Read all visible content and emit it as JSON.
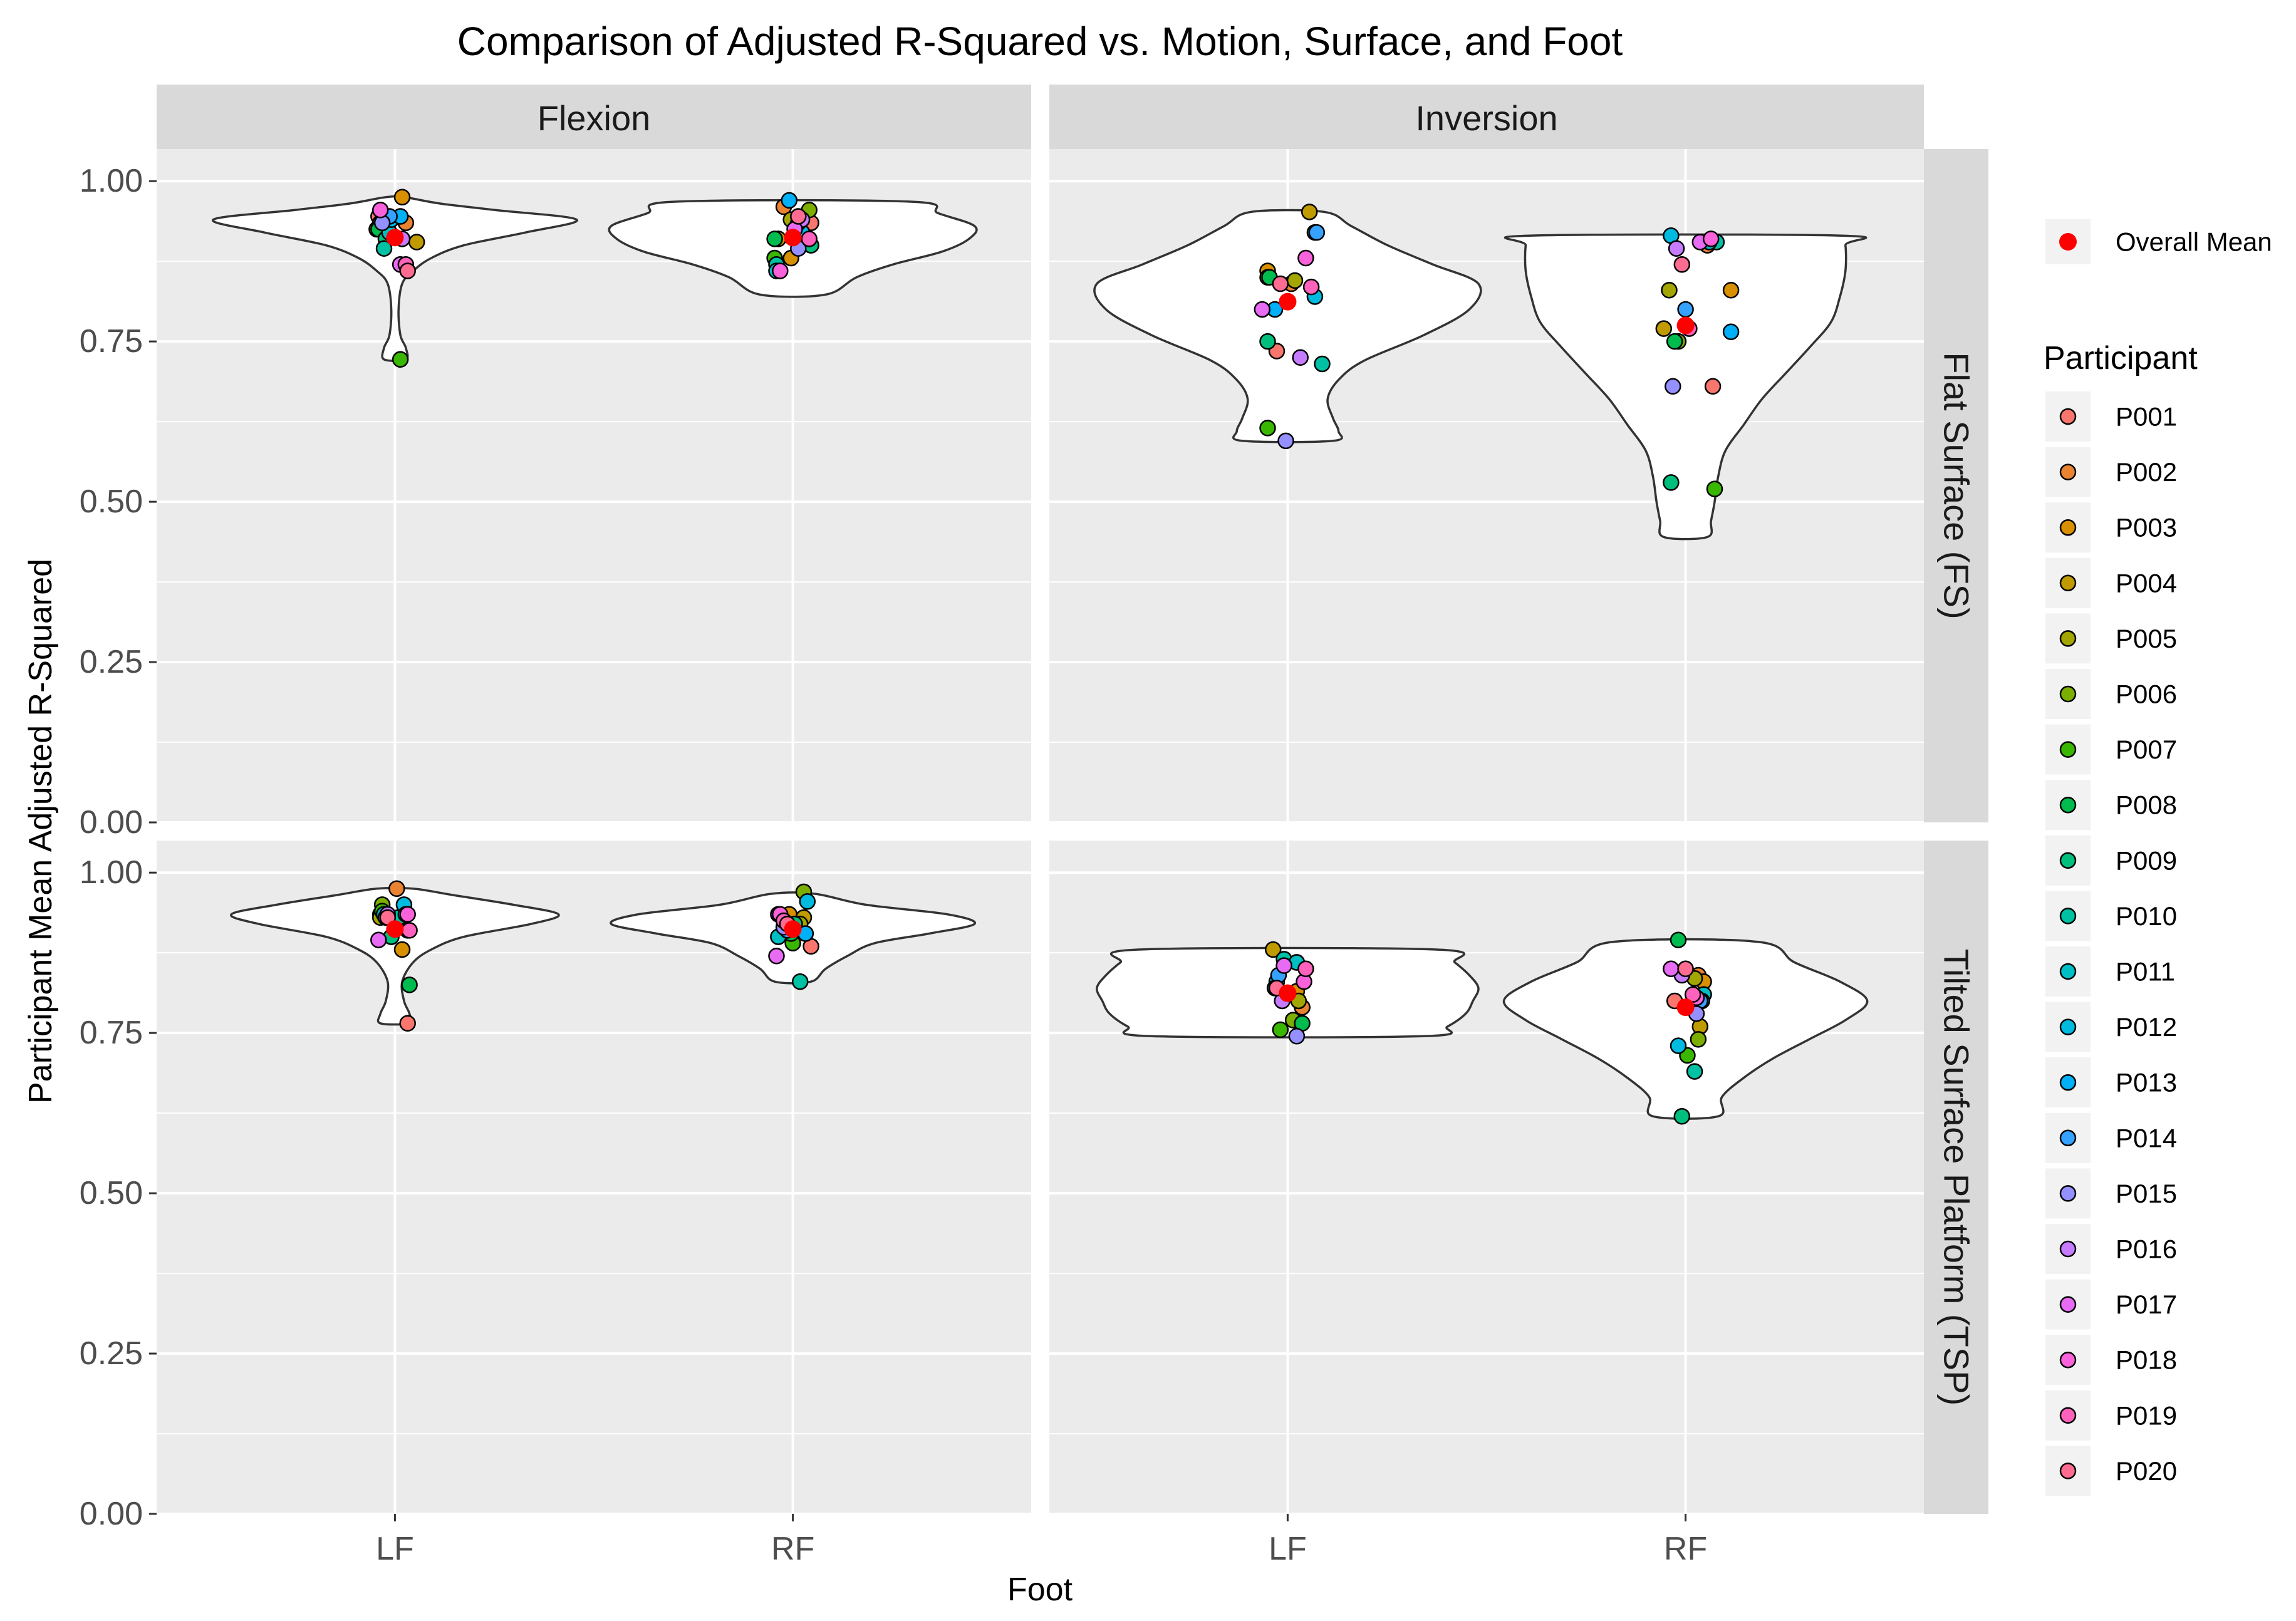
{
  "chart_data": {
    "type": "violin",
    "title": "Comparison of Adjusted R-Squared vs. Motion, Surface, and Foot",
    "xlabel": "Foot",
    "ylabel": "Participant Mean Adjusted R-Squared",
    "ylim": [
      0,
      1.05
    ],
    "yticks": [
      0.0,
      0.25,
      0.5,
      0.75,
      1.0
    ],
    "ytick_labels": [
      "0.00",
      "0.25",
      "0.50",
      "0.75",
      "1.00"
    ],
    "categories": [
      "LF",
      "RF"
    ],
    "facet_cols": [
      "Flexion",
      "Inversion"
    ],
    "facet_rows": [
      "Flat Surface (FS)",
      "Tilted Surface Platform (TSP)"
    ],
    "legend": {
      "mean_label": "Overall Mean",
      "mean_color": "#ff0000",
      "title": "Participant",
      "participants": [
        "P001",
        "P002",
        "P003",
        "P004",
        "P005",
        "P006",
        "P007",
        "P008",
        "P009",
        "P010",
        "P011",
        "P012",
        "P013",
        "P014",
        "P015",
        "P016",
        "P017",
        "P018",
        "P019",
        "P020"
      ],
      "colors": [
        "#F8766D",
        "#EA8331",
        "#D89000",
        "#C09B00",
        "#A3A500",
        "#7CAE00",
        "#39B600",
        "#00BB4E",
        "#00BF7D",
        "#00C1A3",
        "#00BFC4",
        "#00BAE0",
        "#00B0F6",
        "#35A2FF",
        "#9590FF",
        "#C77CFF",
        "#E76BF3",
        "#FA62DB",
        "#FF62BC",
        "#FF6C91"
      ]
    },
    "panels": [
      {
        "motion": "Flexion",
        "surface": "Flat Surface (FS)",
        "groups": [
          {
            "foot": "LF",
            "mean": 0.912,
            "min": 0.722,
            "max": 0.975,
            "violin": [
              [
                0.722,
                0.06
              ],
              [
                0.74,
                0.06
              ],
              [
                0.76,
                0.03
              ],
              [
                0.8,
                0.02
              ],
              [
                0.84,
                0.04
              ],
              [
                0.86,
                0.1
              ],
              [
                0.88,
                0.2
              ],
              [
                0.9,
                0.38
              ],
              [
                0.92,
                0.72
              ],
              [
                0.94,
                1.0
              ],
              [
                0.955,
                0.55
              ],
              [
                0.965,
                0.25
              ],
              [
                0.975,
                0.05
              ]
            ],
            "values": [
              0.945,
              0.935,
              0.975,
              0.905,
              0.925,
              0.935,
              0.722,
              0.925,
              0.91,
              0.895,
              0.92,
              0.94,
              0.945,
              0.945,
              0.935,
              0.91,
              0.87,
              0.955,
              0.87,
              0.86
            ],
            "jitter": [
              -0.09,
              0.06,
              0.04,
              0.12,
              -0.1,
              -0.08,
              0.03,
              -0.09,
              -0.05,
              -0.06,
              -0.03,
              -0.02,
              0.03,
              -0.03,
              -0.07,
              0.04,
              0.03,
              -0.08,
              0.06,
              0.07
            ]
          },
          {
            "foot": "RF",
            "mean": 0.912,
            "min": 0.823,
            "max": 0.968,
            "violin": [
              [
                0.823,
                0.18
              ],
              [
                0.85,
                0.35
              ],
              [
                0.87,
                0.55
              ],
              [
                0.89,
                0.82
              ],
              [
                0.91,
                0.97
              ],
              [
                0.93,
                1.0
              ],
              [
                0.95,
                0.8
              ],
              [
                0.968,
                0.65
              ]
            ],
            "values": [
              0.935,
              0.96,
              0.88,
              0.91,
              0.94,
              0.955,
              0.88,
              0.91,
              0.9,
              0.87,
              0.86,
              0.92,
              0.97,
              0.935,
              0.895,
              0.94,
              0.925,
              0.86,
              0.91,
              0.945
            ],
            "jitter": [
              0.1,
              -0.05,
              -0.01,
              -0.08,
              -0.01,
              0.09,
              -0.1,
              -0.1,
              0.1,
              -0.09,
              -0.09,
              0.05,
              -0.02,
              0.03,
              0.03,
              0.05,
              0.01,
              -0.07,
              0.09,
              0.03
            ]
          }
        ]
      },
      {
        "motion": "Inversion",
        "surface": "Flat Surface (FS)",
        "groups": [
          {
            "foot": "LF",
            "mean": 0.812,
            "min": 0.595,
            "max": 0.952,
            "violin": [
              [
                0.595,
                0.25
              ],
              [
                0.61,
                0.28
              ],
              [
                0.63,
                0.25
              ],
              [
                0.66,
                0.22
              ],
              [
                0.69,
                0.28
              ],
              [
                0.72,
                0.42
              ],
              [
                0.76,
                0.75
              ],
              [
                0.8,
                1.0
              ],
              [
                0.84,
                1.05
              ],
              [
                0.87,
                0.8
              ],
              [
                0.9,
                0.55
              ],
              [
                0.93,
                0.35
              ],
              [
                0.952,
                0.2
              ]
            ],
            "values": [
              0.735,
              0.84,
              0.86,
              0.952,
              0.845,
              0.85,
              0.615,
              0.85,
              0.75,
              0.715,
              0.92,
              0.82,
              0.8,
              0.92,
              0.595,
              0.725,
              0.8,
              0.88,
              0.835,
              0.84
            ],
            "jitter": [
              -0.06,
              0.02,
              -0.11,
              0.12,
              0.04,
              -0.11,
              -0.11,
              -0.1,
              -0.11,
              0.19,
              0.15,
              0.15,
              -0.07,
              0.16,
              -0.01,
              0.07,
              -0.14,
              0.1,
              0.13,
              -0.04
            ]
          },
          {
            "foot": "RF",
            "mean": 0.775,
            "min": 0.445,
            "max": 0.915,
            "violin": [
              [
                0.445,
                0.12
              ],
              [
                0.47,
                0.14
              ],
              [
                0.5,
                0.16
              ],
              [
                0.54,
                0.18
              ],
              [
                0.58,
                0.22
              ],
              [
                0.62,
                0.32
              ],
              [
                0.66,
                0.42
              ],
              [
                0.7,
                0.55
              ],
              [
                0.74,
                0.68
              ],
              [
                0.78,
                0.8
              ],
              [
                0.82,
                0.85
              ],
              [
                0.86,
                0.88
              ],
              [
                0.9,
                0.88
              ],
              [
                0.915,
                0.86
              ]
            ],
            "values": [
              0.68,
              0.9,
              0.83,
              0.77,
              0.83,
              0.75,
              0.52,
              0.75,
              0.53,
              0.905,
              0.905,
              0.915,
              0.765,
              0.8,
              0.68,
              0.895,
              0.905,
              0.91,
              0.77,
              0.87
            ],
            "jitter": [
              0.15,
              0.12,
              0.25,
              -0.12,
              -0.09,
              -0.04,
              0.16,
              -0.06,
              -0.08,
              0.17,
              0.13,
              -0.08,
              0.25,
              0.0,
              -0.07,
              -0.05,
              0.08,
              0.14,
              0.02,
              -0.02
            ]
          }
        ]
      },
      {
        "motion": "Flexion",
        "surface": "Tilted Surface Platform (TSP)",
        "groups": [
          {
            "foot": "LF",
            "mean": 0.912,
            "min": 0.765,
            "max": 0.975,
            "violin": [
              [
                0.765,
                0.08
              ],
              [
                0.78,
                0.08
              ],
              [
                0.8,
                0.05
              ],
              [
                0.83,
                0.04
              ],
              [
                0.86,
                0.1
              ],
              [
                0.88,
                0.2
              ],
              [
                0.9,
                0.38
              ],
              [
                0.92,
                0.75
              ],
              [
                0.935,
                0.9
              ],
              [
                0.95,
                0.65
              ],
              [
                0.965,
                0.32
              ],
              [
                0.975,
                0.1
              ]
            ],
            "values": [
              0.765,
              0.975,
              0.88,
              0.935,
              0.93,
              0.95,
              0.94,
              0.825,
              0.9,
              0.93,
              0.935,
              0.95,
              0.935,
              0.91,
              0.93,
              0.935,
              0.895,
              0.935,
              0.91,
              0.93
            ],
            "jitter": [
              0.07,
              0.01,
              0.04,
              -0.08,
              -0.08,
              -0.07,
              -0.07,
              0.08,
              -0.02,
              0.02,
              -0.06,
              0.05,
              0.06,
              0.07,
              -0.05,
              -0.04,
              -0.09,
              0.07,
              0.08,
              -0.04
            ]
          },
          {
            "foot": "RF",
            "mean": 0.912,
            "min": 0.83,
            "max": 0.967,
            "violin": [
              [
                0.83,
                0.1
              ],
              [
                0.85,
                0.18
              ],
              [
                0.87,
                0.3
              ],
              [
                0.89,
                0.45
              ],
              [
                0.905,
                0.75
              ],
              [
                0.92,
                1.0
              ],
              [
                0.935,
                0.85
              ],
              [
                0.95,
                0.4
              ],
              [
                0.967,
                0.12
              ]
            ],
            "values": [
              0.885,
              0.905,
              0.935,
              0.93,
              0.92,
              0.97,
              0.89,
              0.905,
              0.92,
              0.83,
              0.9,
              0.955,
              0.905,
              0.91,
              0.915,
              0.935,
              0.87,
              0.935,
              0.925,
              0.92
            ],
            "jitter": [
              0.1,
              -0.02,
              -0.02,
              0.06,
              0.04,
              0.06,
              0.0,
              -0.01,
              0.01,
              0.04,
              -0.08,
              0.08,
              0.07,
              -0.03,
              -0.05,
              -0.08,
              -0.09,
              -0.07,
              -0.05,
              -0.03
            ]
          }
        ]
      },
      {
        "motion": "Inversion",
        "surface": "Tilted Surface Platform (TSP)",
        "groups": [
          {
            "foot": "LF",
            "mean": 0.812,
            "min": 0.745,
            "max": 0.88,
            "violin": [
              [
                0.745,
                0.75
              ],
              [
                0.76,
                0.88
              ],
              [
                0.78,
                0.98
              ],
              [
                0.8,
                1.02
              ],
              [
                0.82,
                1.05
              ],
              [
                0.84,
                1.0
              ],
              [
                0.86,
                0.92
              ],
              [
                0.88,
                0.82
              ]
            ],
            "values": [
              0.79,
              0.79,
              0.815,
              0.88,
              0.8,
              0.77,
              0.755,
              0.765,
              0.86,
              0.865,
              0.86,
              0.83,
              0.82,
              0.84,
              0.745,
              0.8,
              0.855,
              0.83,
              0.85,
              0.82
            ],
            "jitter": [
              0.08,
              0.08,
              0.05,
              -0.08,
              0.06,
              0.03,
              -0.04,
              0.08,
              0.05,
              -0.02,
              0.05,
              -0.06,
              -0.07,
              -0.05,
              0.05,
              -0.03,
              -0.02,
              0.09,
              0.1,
              -0.06
            ]
          },
          {
            "foot": "RF",
            "mean": 0.79,
            "min": 0.62,
            "max": 0.892,
            "violin": [
              [
                0.62,
                0.18
              ],
              [
                0.65,
                0.2
              ],
              [
                0.68,
                0.32
              ],
              [
                0.71,
                0.48
              ],
              [
                0.74,
                0.68
              ],
              [
                0.77,
                0.88
              ],
              [
                0.8,
                1.0
              ],
              [
                0.83,
                0.85
              ],
              [
                0.86,
                0.6
              ],
              [
                0.892,
                0.4
              ]
            ],
            "values": [
              0.8,
              0.84,
              0.83,
              0.76,
              0.835,
              0.74,
              0.715,
              0.895,
              0.62,
              0.69,
              0.81,
              0.73,
              0.8,
              0.8,
              0.78,
              0.84,
              0.85,
              0.805,
              0.81,
              0.85
            ],
            "jitter": [
              -0.06,
              0.07,
              0.1,
              0.08,
              0.05,
              0.07,
              0.01,
              -0.04,
              -0.02,
              0.05,
              0.1,
              -0.04,
              0.09,
              0.08,
              0.06,
              -0.02,
              -0.08,
              0.06,
              0.04,
              0.0
            ]
          }
        ]
      }
    ]
  }
}
